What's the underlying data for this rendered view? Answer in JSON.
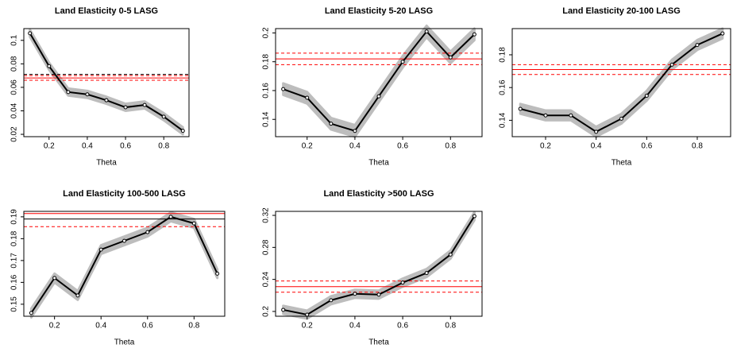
{
  "chart_data": [
    {
      "type": "line",
      "title": "Land Elasticity 0-5 LASG",
      "x_label": "Theta",
      "x": [
        0.1,
        0.2,
        0.3,
        0.4,
        0.5,
        0.6,
        0.7,
        0.8,
        0.9
      ],
      "values": [
        0.106,
        0.078,
        0.056,
        0.054,
        0.049,
        0.043,
        0.045,
        0.035,
        0.023
      ],
      "ci_lower": [
        0.103,
        0.075,
        0.053,
        0.051,
        0.046,
        0.04,
        0.042,
        0.032,
        0.02
      ],
      "ci_upper": [
        0.109,
        0.081,
        0.059,
        0.057,
        0.052,
        0.046,
        0.048,
        0.038,
        0.026
      ],
      "hlines": [
        {
          "value": 0.071,
          "color": "#000000",
          "dash": true
        },
        {
          "value": 0.068,
          "color": "#ff0000",
          "dash": false
        },
        {
          "value": 0.07,
          "color": "#ff0000",
          "dash": true
        },
        {
          "value": 0.066,
          "color": "#ff0000",
          "dash": true
        }
      ],
      "xlim": [
        0.068,
        0.932
      ],
      "ylim": [
        0.018,
        0.11
      ],
      "xticks": [
        0.2,
        0.4,
        0.6,
        0.8
      ],
      "yticks": [
        0.02,
        0.04,
        0.06,
        0.08,
        0.1
      ]
    },
    {
      "type": "line",
      "title": "Land Elasticity 5-20 LASG",
      "x_label": "Theta",
      "x": [
        0.1,
        0.2,
        0.3,
        0.4,
        0.5,
        0.6,
        0.7,
        0.8,
        0.9
      ],
      "values": [
        0.161,
        0.155,
        0.137,
        0.132,
        0.156,
        0.18,
        0.201,
        0.183,
        0.199
      ],
      "ci_lower": [
        0.157,
        0.151,
        0.133,
        0.128,
        0.152,
        0.176,
        0.197,
        0.179,
        0.195
      ],
      "ci_upper": [
        0.165,
        0.159,
        0.141,
        0.136,
        0.16,
        0.184,
        0.205,
        0.187,
        0.203
      ],
      "hlines": [
        {
          "value": 0.182,
          "color": "#ff0000",
          "dash": false
        },
        {
          "value": 0.186,
          "color": "#ff0000",
          "dash": true
        },
        {
          "value": 0.178,
          "color": "#ff0000",
          "dash": true
        }
      ],
      "xlim": [
        0.068,
        0.932
      ],
      "ylim": [
        0.128,
        0.203
      ],
      "xticks": [
        0.2,
        0.4,
        0.6,
        0.8
      ],
      "yticks": [
        0.14,
        0.16,
        0.18,
        0.2
      ]
    },
    {
      "type": "line",
      "title": "Land Elasticity 20-100 LASG",
      "x_label": "Theta",
      "x": [
        0.1,
        0.2,
        0.3,
        0.4,
        0.5,
        0.6,
        0.7,
        0.8,
        0.9
      ],
      "values": [
        0.147,
        0.143,
        0.143,
        0.133,
        0.141,
        0.155,
        0.174,
        0.186,
        0.193
      ],
      "ci_lower": [
        0.144,
        0.14,
        0.14,
        0.13,
        0.138,
        0.152,
        0.171,
        0.183,
        0.19
      ],
      "ci_upper": [
        0.15,
        0.146,
        0.146,
        0.136,
        0.144,
        0.158,
        0.177,
        0.189,
        0.196
      ],
      "hlines": [
        {
          "value": 0.171,
          "color": "#ff0000",
          "dash": false
        },
        {
          "value": 0.174,
          "color": "#ff0000",
          "dash": true
        },
        {
          "value": 0.168,
          "color": "#ff0000",
          "dash": true
        }
      ],
      "xlim": [
        0.068,
        0.932
      ],
      "ylim": [
        0.13,
        0.196
      ],
      "xticks": [
        0.2,
        0.4,
        0.6,
        0.8
      ],
      "yticks": [
        0.14,
        0.16,
        0.18
      ]
    },
    {
      "type": "line",
      "title": "Land Elasticity 100-500 LASG",
      "x_label": "Theta",
      "x": [
        0.1,
        0.2,
        0.3,
        0.4,
        0.5,
        0.6,
        0.7,
        0.8,
        0.9
      ],
      "values": [
        0.146,
        0.162,
        0.154,
        0.175,
        0.179,
        0.183,
        0.19,
        0.187,
        0.164
      ],
      "ci_lower": [
        0.144,
        0.16,
        0.152,
        0.173,
        0.177,
        0.181,
        0.188,
        0.185,
        0.162
      ],
      "ci_upper": [
        0.148,
        0.164,
        0.156,
        0.177,
        0.181,
        0.185,
        0.192,
        0.189,
        0.166
      ],
      "hlines": [
        {
          "value": 0.1915,
          "color": "#ff0000",
          "dash": false
        },
        {
          "value": 0.189,
          "color": "#000000",
          "dash": false
        },
        {
          "value": 0.1855,
          "color": "#ff0000",
          "dash": true
        }
      ],
      "xlim": [
        0.068,
        0.932
      ],
      "ylim": [
        0.1445,
        0.1925
      ],
      "xticks": [
        0.2,
        0.4,
        0.6,
        0.8
      ],
      "yticks": [
        0.15,
        0.16,
        0.17,
        0.18,
        0.19
      ]
    },
    {
      "type": "line",
      "title": "Land Elasticity >500 LASG",
      "x_label": "Theta",
      "x": [
        0.1,
        0.2,
        0.3,
        0.4,
        0.5,
        0.6,
        0.7,
        0.8,
        0.9
      ],
      "values": [
        0.202,
        0.196,
        0.214,
        0.222,
        0.221,
        0.236,
        0.248,
        0.271,
        0.319
      ],
      "ci_lower": [
        0.197,
        0.191,
        0.209,
        0.217,
        0.216,
        0.231,
        0.243,
        0.266,
        0.314
      ],
      "ci_upper": [
        0.207,
        0.201,
        0.219,
        0.227,
        0.226,
        0.241,
        0.253,
        0.276,
        0.324
      ],
      "hlines": [
        {
          "value": 0.231,
          "color": "#ff0000",
          "dash": false
        },
        {
          "value": 0.238,
          "color": "#ff0000",
          "dash": true
        },
        {
          "value": 0.224,
          "color": "#ff0000",
          "dash": true
        }
      ],
      "xlim": [
        0.068,
        0.932
      ],
      "ylim": [
        0.194,
        0.325
      ],
      "xticks": [
        0.2,
        0.4,
        0.6,
        0.8
      ],
      "yticks": [
        0.2,
        0.24,
        0.28,
        0.32
      ]
    }
  ]
}
